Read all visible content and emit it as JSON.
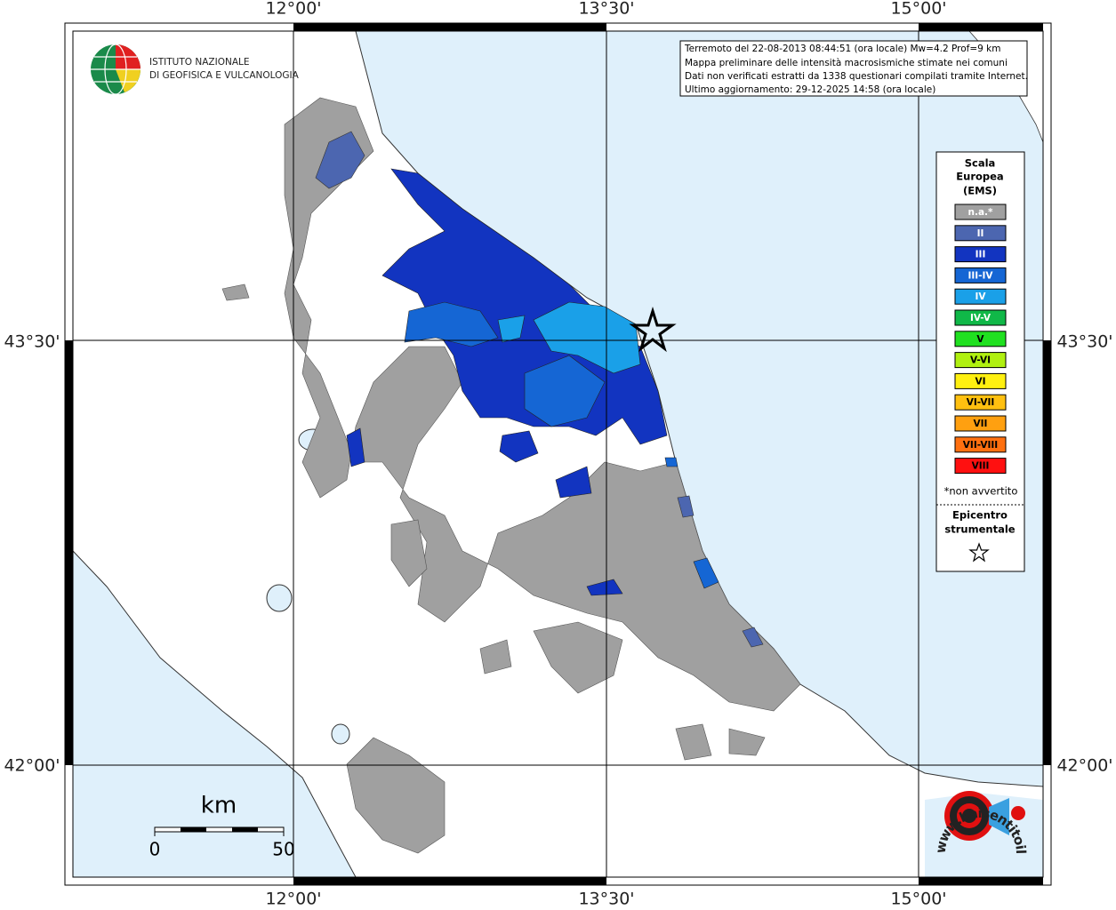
{
  "axes": {
    "top": [
      "12°00'",
      "13°30'",
      "15°00'"
    ],
    "bottom": [
      "12°00'",
      "13°30'",
      "15°00'"
    ],
    "left": [
      "43°30'",
      "42°00'"
    ],
    "right": [
      "43°30'",
      "42°00'"
    ]
  },
  "logo": {
    "line1": "ISTITUTO NAZIONALE",
    "line2": "DI GEOFISICA E VULCANOLOGIA"
  },
  "info": [
    "Terremoto del 22-08-2013 08:44:51 (ora locale) Mw=4.2 Prof=9 km",
    "Mappa preliminare delle intensità macrosismiche stimate nei comuni",
    "Dati non verificati estratti da 1338 questionari compilati tramite Internet.",
    "Ultimo aggiornamento: 29-12-2025 14:58 (ora locale)"
  ],
  "legend": {
    "title": [
      "Scala",
      "Europea",
      "(EMS)"
    ],
    "items": [
      {
        "label": "n.a.*",
        "color": "#a0a0a0"
      },
      {
        "label": "II",
        "color": "#4c66b0"
      },
      {
        "label": "III",
        "color": "#1234c0"
      },
      {
        "label": "III-IV",
        "color": "#1566d4"
      },
      {
        "label": "IV",
        "color": "#1aa0e8"
      },
      {
        "label": "IV-V",
        "color": "#10b848"
      },
      {
        "label": "V",
        "color": "#20e020"
      },
      {
        "label": "V-VI",
        "color": "#b0f010"
      },
      {
        "label": "VI",
        "color": "#fff010"
      },
      {
        "label": "VI-VII",
        "color": "#ffc010"
      },
      {
        "label": "VII",
        "color": "#ffa010"
      },
      {
        "label": "VII-VIII",
        "color": "#ff7010"
      },
      {
        "label": "VIII",
        "color": "#ff1010"
      }
    ],
    "note": "*non avvertito",
    "epicenter": [
      "Epicentro",
      "strumentale"
    ]
  },
  "scale_bar": {
    "unit": "km",
    "start": "0",
    "end": "50"
  },
  "site": "www.haisentitoilterremoto.it"
}
